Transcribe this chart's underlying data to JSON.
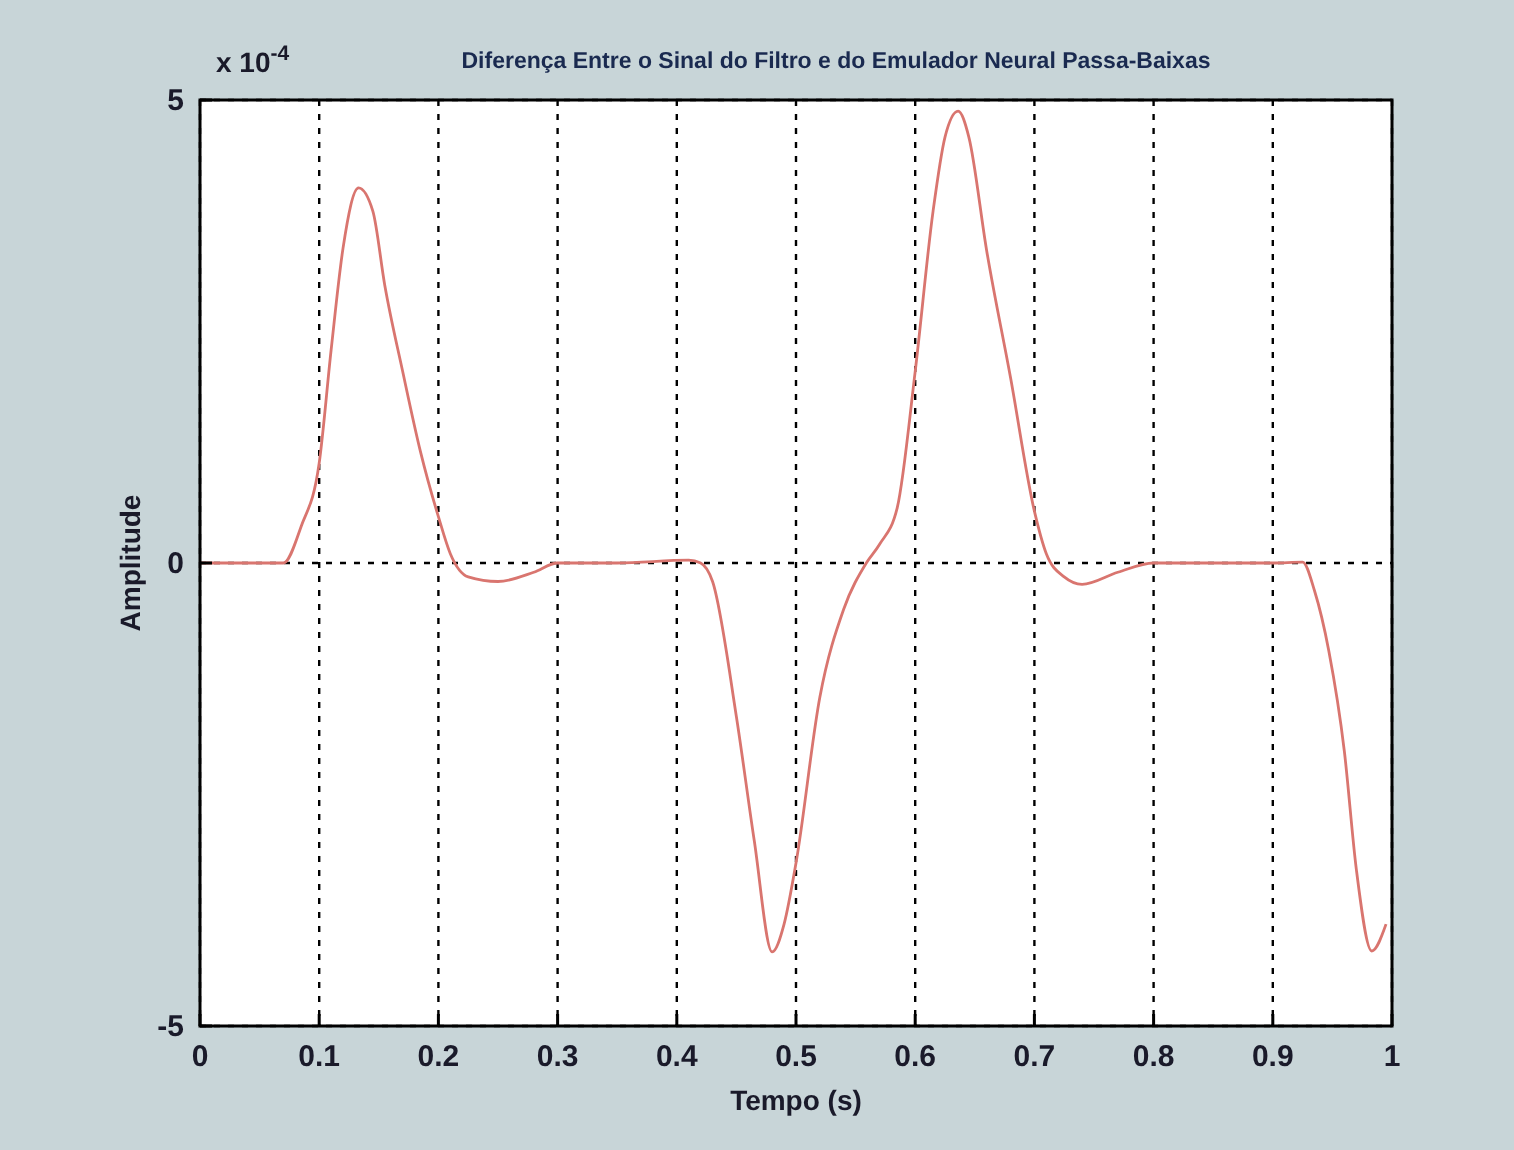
{
  "chart_data": {
    "type": "line",
    "title": "Diferença Entre o Sinal do Filtro e do Emulador Neural Passa-Baixas",
    "xlabel": "Tempo (s)",
    "ylabel": "Amplitude",
    "annotations": [
      "x 10$^{-4}$"
    ],
    "series": [
      {
        "color": "#d9756f",
        "x": [
          0,
          0.07,
          0.085,
          0.1,
          0.11,
          0.12,
          0.133,
          0.145,
          0.155,
          0.17,
          0.185,
          0.2,
          0.21,
          0.225,
          0.25,
          0.28,
          0.3,
          0.35,
          0.41,
          0.42,
          0.43,
          0.45,
          0.465,
          0.48,
          0.49,
          0.5,
          0.52,
          0.54,
          0.559,
          0.57,
          0.585,
          0.6,
          0.615,
          0.625,
          0.636,
          0.645,
          0.66,
          0.68,
          0.7,
          0.71,
          0.725,
          0.74,
          0.77,
          0.8,
          0.9,
          0.925,
          0.935,
          0.947,
          0.96,
          0.97,
          0.983,
          0.995
        ],
        "values": [
          0,
          0,
          0.4,
          1.08,
          2.3,
          3.4,
          4.05,
          3.8,
          3.0,
          2.07,
          1.2,
          0.5,
          0.1,
          -0.15,
          -0.2,
          -0.1,
          0,
          0,
          0.03,
          0,
          -0.2,
          -1.66,
          -3.0,
          -4.2,
          -3.9,
          -3.24,
          -1.45,
          -0.5,
          0,
          0.2,
          0.6,
          2.07,
          3.8,
          4.6,
          4.88,
          4.6,
          3.37,
          2.0,
          0.56,
          0.1,
          -0.15,
          -0.23,
          -0.1,
          0,
          0,
          0.01,
          -0.3,
          -0.95,
          -2.03,
          -3.3,
          -4.19,
          -3.9
        ]
      }
    ],
    "xlim": [
      0,
      1
    ],
    "xticks": [
      0,
      0.1,
      0.2,
      0.3,
      0.4,
      0.5,
      0.6,
      0.7,
      0.8,
      0.9,
      1
    ],
    "ylim": [
      -5,
      5
    ],
    "yticks": [
      -5,
      0,
      5
    ],
    "grid": true,
    "marker": "none",
    "line_style": "solid"
  }
}
